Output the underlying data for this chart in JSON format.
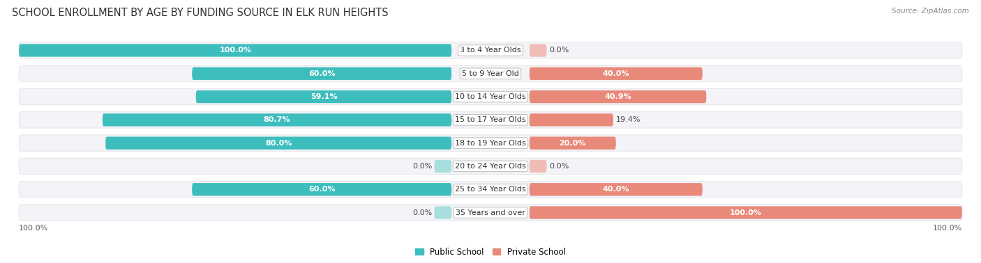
{
  "title": "SCHOOL ENROLLMENT BY AGE BY FUNDING SOURCE IN ELK RUN HEIGHTS",
  "source": "Source: ZipAtlas.com",
  "categories": [
    "3 to 4 Year Olds",
    "5 to 9 Year Old",
    "10 to 14 Year Olds",
    "15 to 17 Year Olds",
    "18 to 19 Year Olds",
    "20 to 24 Year Olds",
    "25 to 34 Year Olds",
    "35 Years and over"
  ],
  "public_values": [
    100.0,
    60.0,
    59.1,
    80.7,
    80.0,
    0.0,
    60.0,
    0.0
  ],
  "private_values": [
    0.0,
    40.0,
    40.9,
    19.4,
    20.0,
    0.0,
    40.0,
    100.0
  ],
  "public_color": "#3dbdbd",
  "private_color": "#e8897a",
  "public_color_light": "#a8dede",
  "private_color_light": "#f0bdb5",
  "public_label": "Public School",
  "private_label": "Private School",
  "row_bg_color": "#e8e8ec",
  "row_inner_color": "#f4f4f8",
  "label_fontsize": 8.0,
  "title_fontsize": 10.5,
  "axis_label_fontsize": 8.0
}
